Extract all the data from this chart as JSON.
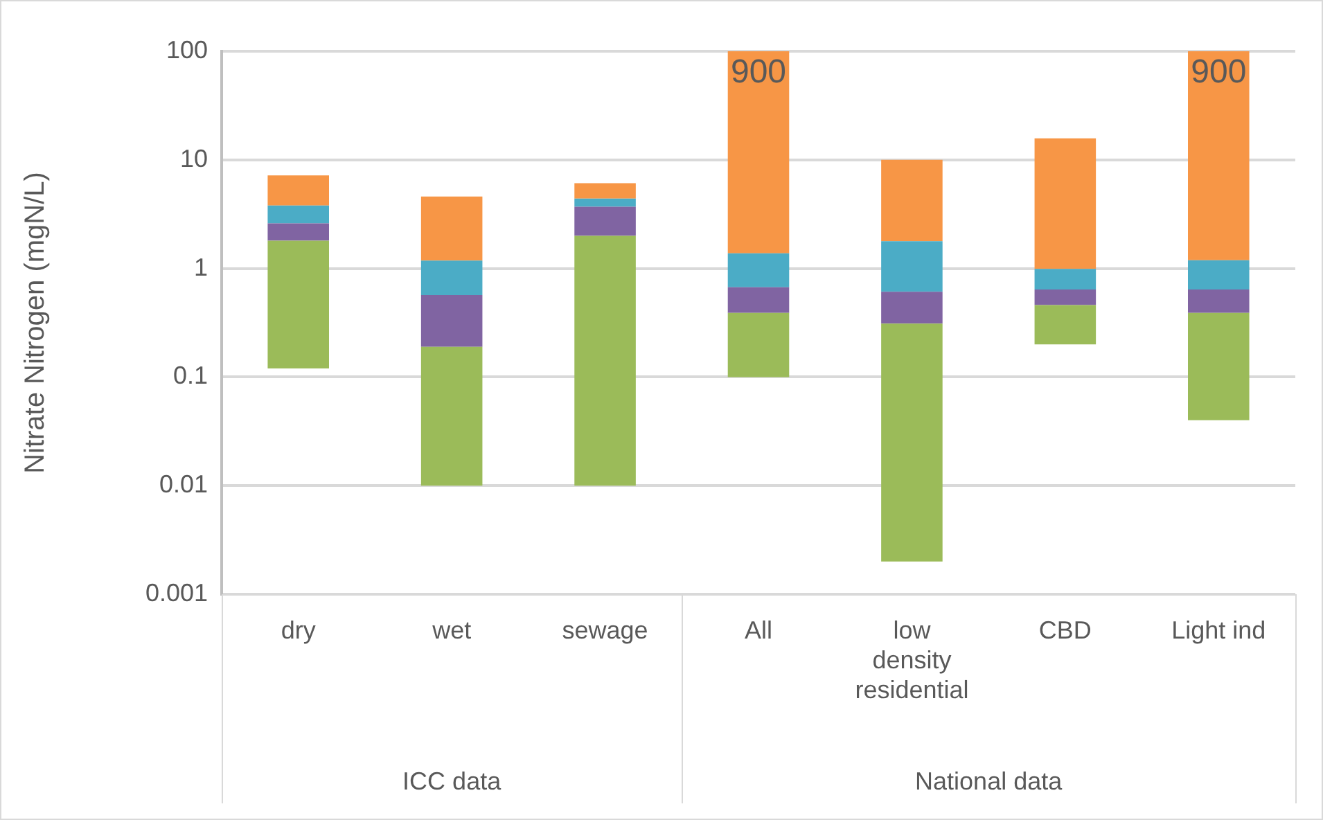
{
  "chart_data": {
    "type": "bar",
    "ylabel": "Nitrate Nitrogen (mgN/L)",
    "categories": [
      "dry",
      "wet",
      "sewage",
      "All",
      "low density residential",
      "CBD",
      "Light ind"
    ],
    "series": [
      {
        "color": "#9bbb59",
        "base": [
          0.12,
          0.01,
          0.01,
          0.1,
          0.002,
          0.2,
          0.04
        ],
        "values": [
          1.68,
          0.18,
          1.99,
          0.29,
          0.308,
          0.26,
          0.35
        ]
      },
      {
        "color": "#8064a2",
        "base": [
          1.8,
          0.19,
          2.0,
          0.39,
          0.31,
          0.46,
          0.39
        ],
        "values": [
          0.8,
          0.38,
          1.7,
          0.28,
          0.3,
          0.18,
          0.25
        ]
      },
      {
        "color": "#4bacc6",
        "base": [
          2.6,
          0.57,
          3.7,
          0.67,
          0.61,
          0.64,
          0.64
        ],
        "values": [
          1.2,
          0.61,
          0.7,
          0.71,
          1.17,
          0.35,
          0.55
        ]
      },
      {
        "color": "#f79646",
        "base": [
          3.8,
          1.18,
          4.4,
          1.38,
          1.78,
          0.99,
          1.19
        ],
        "values": [
          3.4,
          3.42,
          1.7,
          898.62,
          8.22,
          14.81,
          898.81
        ]
      }
    ],
    "log": true,
    "ylim": [
      0.001,
      100
    ],
    "yticks": [
      0.001,
      0.01,
      0.1,
      1,
      10,
      100
    ],
    "grid": "y",
    "legend": false,
    "annotations": [
      "ICC data",
      "National data",
      "900",
      "900"
    ]
  }
}
